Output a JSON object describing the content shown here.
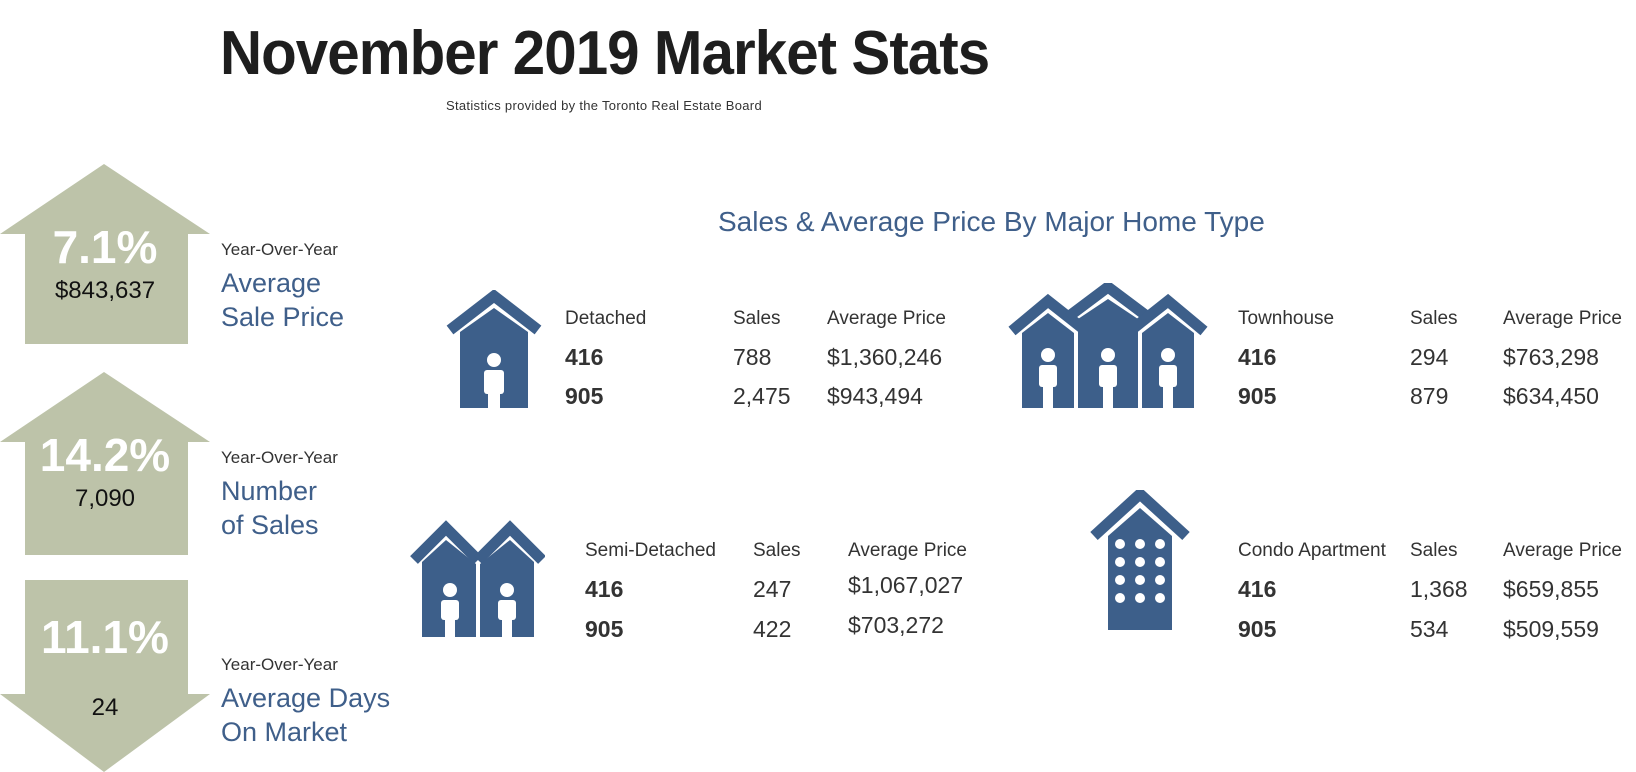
{
  "title": "November 2019 Market Stats",
  "subtitle": "Statistics provided by the Toronto Real Estate Board",
  "section_title": "Sales & Average Price By Major Home Type",
  "colors": {
    "arrow": "#bdc3a9",
    "accent": "#3f5f8a",
    "house": "#3d5f8a"
  },
  "metrics": [
    {
      "direction": "up",
      "percent": "7.1%",
      "value": "$843,637",
      "label_top": "Year-Over-Year",
      "label_line1": "Average",
      "label_line2": "Sale Price"
    },
    {
      "direction": "up",
      "percent": "14.2%",
      "value": "7,090",
      "label_top": "Year-Over-Year",
      "label_line1": "Number",
      "label_line2": "of Sales"
    },
    {
      "direction": "down",
      "percent": "11.1%",
      "value": "24",
      "label_top": "Year-Over-Year",
      "label_line1": "Average Days",
      "label_line2": "On Market"
    }
  ],
  "home_types": {
    "detached": {
      "type": "Detached",
      "sales_header": "Sales",
      "price_header": "Average Price",
      "icon": "detached-house-icon",
      "rows": [
        {
          "region": "416",
          "sales": "788",
          "price": "$1,360,246"
        },
        {
          "region": "905",
          "sales": "2,475",
          "price": "$943,494"
        }
      ]
    },
    "townhouse": {
      "type": "Townhouse",
      "sales_header": "Sales",
      "price_header": "Average Price",
      "icon": "townhouse-icon",
      "rows": [
        {
          "region": "416",
          "sales": "294",
          "price": "$763,298"
        },
        {
          "region": "905",
          "sales": "879",
          "price": "$634,450"
        }
      ]
    },
    "semi": {
      "type": "Semi-Detached",
      "sales_header": "Sales",
      "price_header": "Average Price",
      "icon": "semi-detached-house-icon",
      "rows": [
        {
          "region": "416",
          "sales": "247",
          "price": "$1,067,027"
        },
        {
          "region": "905",
          "sales": "422",
          "price": "$703,272"
        }
      ]
    },
    "condo": {
      "type": "Condo Apartment",
      "sales_header": "Sales",
      "price_header": "Average Price",
      "icon": "condo-building-icon",
      "rows": [
        {
          "region": "416",
          "sales": "1,368",
          "price": "$659,855"
        },
        {
          "region": "905",
          "sales": "534",
          "price": "$509,559"
        }
      ]
    }
  }
}
